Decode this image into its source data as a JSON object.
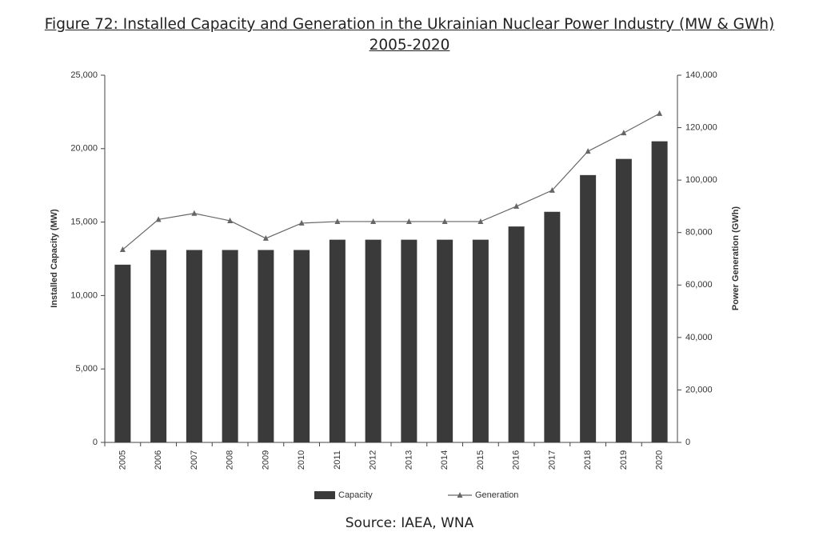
{
  "chart_data": {
    "type": "bar-line",
    "title": "Figure 72: Installed Capacity and Generation in the Ukrainian Nuclear Power Industry (MW & GWh) 2005-2020",
    "source": "Source: IAEA, WNA",
    "ylabel": "Installed Capacity (MW)",
    "y2label": "Power Generation (GWh)",
    "categories": [
      "2005",
      "2006",
      "2007",
      "2008",
      "2009",
      "2010",
      "2011",
      "2012",
      "2013",
      "2014",
      "2015",
      "2016",
      "2017",
      "2018",
      "2019",
      "2020"
    ],
    "series": [
      {
        "name": "Capacity",
        "type": "bar",
        "color": "#3a3a3a",
        "values": [
          12100,
          13100,
          13100,
          13100,
          13100,
          13100,
          13800,
          13800,
          13800,
          13800,
          13800,
          14700,
          15700,
          18200,
          19300,
          20500
        ]
      },
      {
        "name": "Generation",
        "type": "line",
        "axis": "y2",
        "color": "#666666",
        "values": [
          73500,
          85000,
          87300,
          84500,
          77800,
          83600,
          84200,
          84200,
          84200,
          84200,
          84200,
          90000,
          96100,
          111000,
          118000,
          125400
        ]
      }
    ],
    "ylim": [
      0,
      25000
    ],
    "yticks": [
      0,
      {
        "value": 5000,
        "label": "5,000"
      },
      {
        "value": 10000,
        "label": "10,000"
      },
      {
        "value": 15000,
        "label": "15,000"
      },
      {
        "value": 20000,
        "label": "20,000"
      },
      {
        "value": 25000,
        "label": "25,000"
      }
    ],
    "y2lim": [
      0,
      140000
    ],
    "y2ticks": [
      0,
      {
        "value": 20000,
        "label": "20,000"
      },
      {
        "value": 40000,
        "label": "40,000"
      },
      {
        "value": 60000,
        "label": "60,000"
      },
      {
        "value": 80000,
        "label": "80,000"
      },
      {
        "value": 100000,
        "label": "100,000"
      },
      {
        "value": 120000,
        "label": "120,000"
      },
      {
        "value": 140000,
        "label": "140,000"
      }
    ],
    "legend": "bottom"
  }
}
